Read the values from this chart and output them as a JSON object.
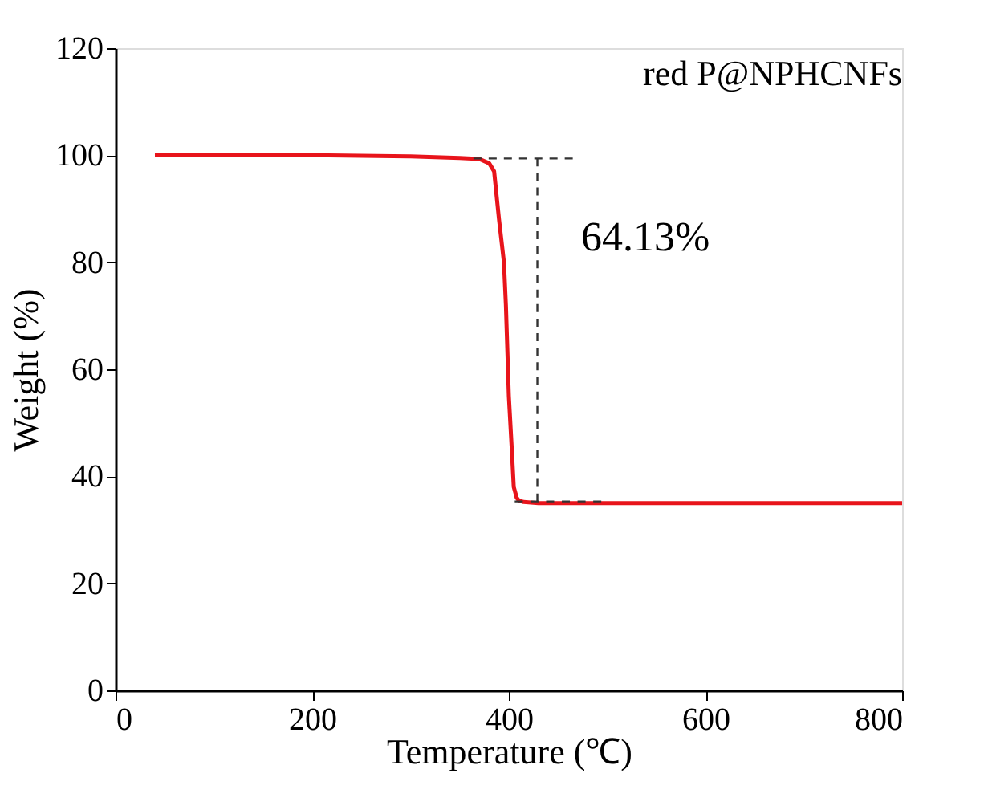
{
  "chart_data": {
    "type": "line",
    "xlabel": "Temperature (℃)",
    "ylabel": "Weight (%)",
    "x": [
      40,
      100,
      200,
      300,
      350,
      370,
      380,
      385,
      390,
      395,
      397,
      400,
      403,
      405,
      408,
      410,
      415,
      430,
      500,
      600,
      700,
      800
    ],
    "series": [
      {
        "color": "#e8141b",
        "values": [
          100,
          100.1,
          100,
          99.8,
          99.5,
          99.3,
          98.5,
          97,
          88,
          80,
          72,
          55,
          45,
          38,
          36,
          35.5,
          35.2,
          35,
          35,
          35,
          35,
          35
        ]
      },
      {
        "color": "#333333",
        "line_style": "dashed",
        "x": [
          364,
          465
        ],
        "values": [
          99.4,
          99.4
        ]
      },
      {
        "color": "#333333",
        "line_style": "dashed",
        "x": [
          429,
          429
        ],
        "values": [
          99.4,
          35.3
        ]
      },
      {
        "color": "#333333",
        "line_style": "dashed",
        "x": [
          406,
          494
        ],
        "values": [
          35.3,
          35.3
        ]
      }
    ],
    "xlim": [
      0,
      800
    ],
    "xticks": [
      0,
      200,
      400,
      600,
      800
    ],
    "ylim": [
      0,
      120
    ],
    "yticks": [
      0,
      20,
      40,
      60,
      80,
      100,
      120
    ],
    "annotations": [
      "red P@NPHCNFs",
      "64.13%"
    ],
    "grid": false,
    "line_style": "solid",
    "marker": "none"
  }
}
